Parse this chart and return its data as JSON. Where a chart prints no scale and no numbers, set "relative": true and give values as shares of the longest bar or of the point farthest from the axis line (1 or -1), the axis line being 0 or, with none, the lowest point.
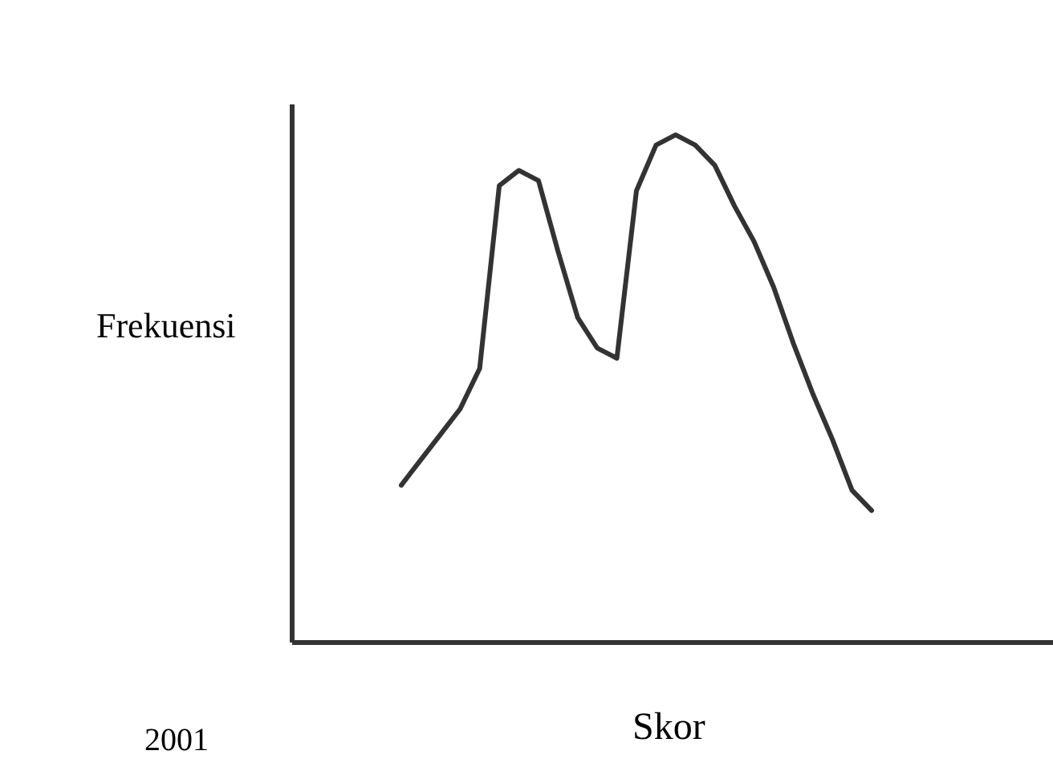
{
  "chart_data": {
    "type": "line",
    "xlabel": "Skor",
    "ylabel": "Frekuensi",
    "annotations": [
      "2001"
    ],
    "relative": true,
    "marker": "none",
    "categories": [
      null,
      null,
      null,
      null,
      null,
      null,
      null,
      null,
      null,
      null,
      null,
      null,
      null,
      null,
      null,
      null,
      null,
      null,
      null,
      null,
      null,
      null,
      null,
      null,
      null
    ],
    "series": [
      {
        "color": "#333333",
        "values": [
          0.31,
          0.36,
          0.41,
          0.46,
          0.54,
          0.9,
          0.93,
          0.91,
          0.77,
          0.64,
          0.58,
          0.56,
          0.89,
          0.98,
          1.0,
          0.98,
          0.94,
          0.86,
          0.79,
          0.7,
          0.59,
          0.49,
          0.4,
          0.3,
          0.26
        ]
      }
    ]
  }
}
